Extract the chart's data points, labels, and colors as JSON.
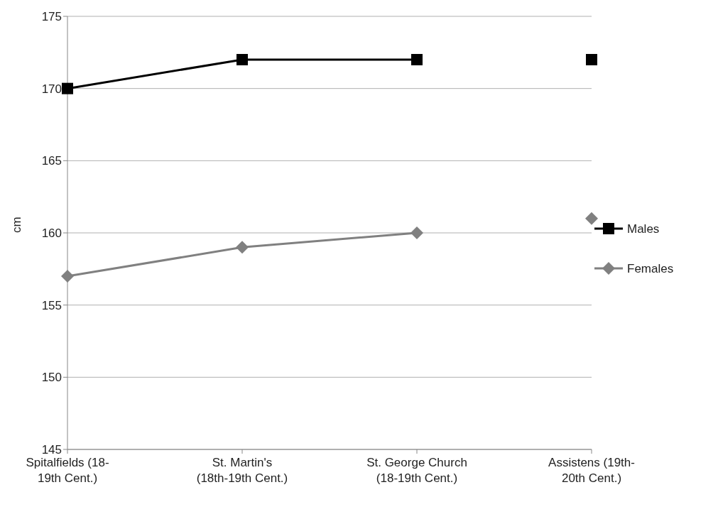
{
  "chart_data": {
    "type": "line",
    "ylabel": "cm",
    "categories": [
      "Spitalfields (18-19th Cent.)",
      "St. Martin's (18th-19th Cent.)",
      "St. George Church (18-19th Cent.)",
      "Assistens (19th-20th Cent.)"
    ],
    "series": [
      {
        "name": "Males",
        "color": "#000000",
        "marker": "square",
        "values": [
          170,
          172,
          172,
          null
        ]
      },
      {
        "type": "scatter",
        "color": "#000000",
        "marker": "square",
        "values": [
          null,
          null,
          null,
          172
        ]
      },
      {
        "name": "Females",
        "color": "#808080",
        "marker": "diamond",
        "values": [
          157,
          159,
          160,
          null
        ]
      },
      {
        "type": "scatter",
        "color": "#808080",
        "marker": "diamond",
        "values": [
          null,
          null,
          null,
          161
        ]
      }
    ],
    "ylim": [
      145,
      175
    ],
    "yticks": [
      145,
      150,
      155,
      160,
      165,
      170,
      175
    ],
    "grid": "y",
    "legend": "right",
    "line_style": "solid"
  }
}
